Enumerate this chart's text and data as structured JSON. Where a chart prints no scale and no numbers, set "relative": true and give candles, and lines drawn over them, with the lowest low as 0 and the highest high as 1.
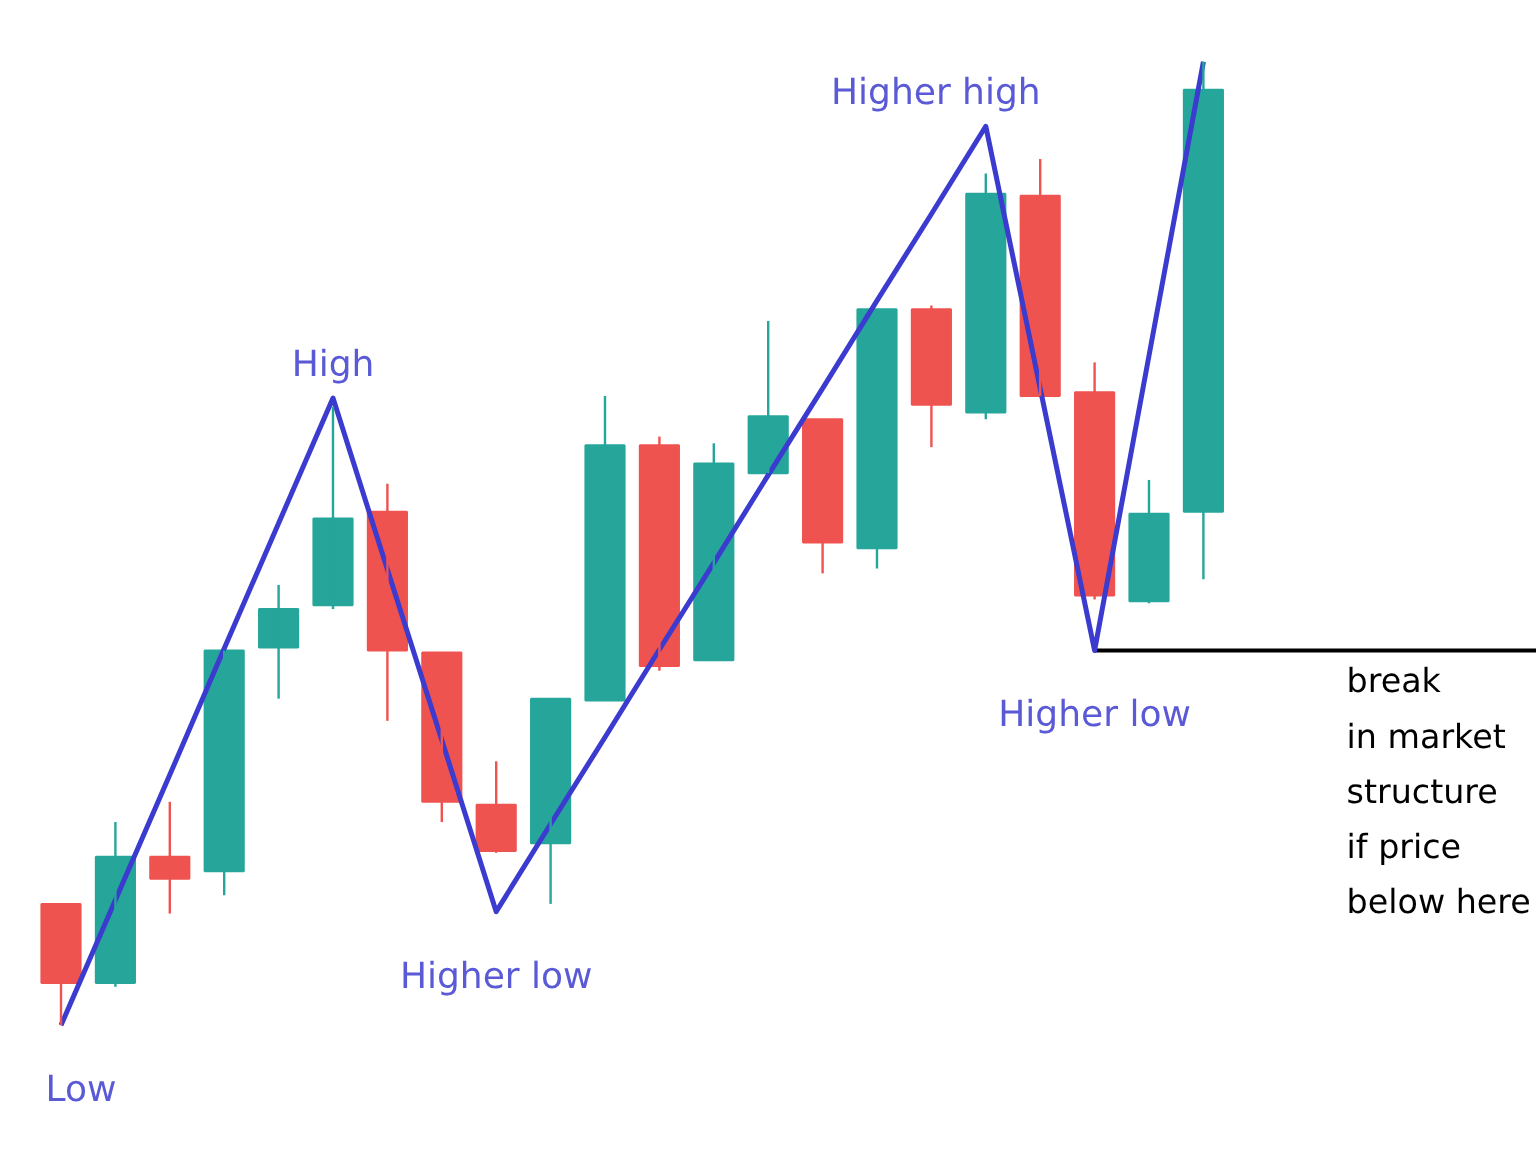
{
  "chart_data": {
    "type": "candlestick",
    "relative": true,
    "tick_labels": false,
    "grid": false,
    "categories": [
      null,
      null,
      null,
      null,
      null,
      null,
      null,
      null,
      null,
      null,
      null,
      null,
      null,
      null,
      null,
      null,
      null,
      null,
      null,
      null,
      null,
      null
    ],
    "ohlc": [
      [
        0.126,
        0.126,
        0,
        0.044
      ],
      [
        0.044,
        0.211,
        0.04,
        0.175
      ],
      [
        0.175,
        0.232,
        0.116,
        0.152
      ],
      [
        0.16,
        0.389,
        0.135,
        0.389
      ],
      [
        0.392,
        0.457,
        0.339,
        0.432
      ],
      [
        0.436,
        0.642,
        0.432,
        0.526
      ],
      [
        0.533,
        0.562,
        0.316,
        0.389
      ],
      [
        0.387,
        0.387,
        0.211,
        0.232
      ],
      [
        0.229,
        0.274,
        0.179,
        0.181
      ],
      [
        0.189,
        0.339,
        0.126,
        0.339
      ],
      [
        0.337,
        0.653,
        0.337,
        0.602
      ],
      [
        0.602,
        0.611,
        0.368,
        0.373
      ],
      [
        0.379,
        0.604,
        0.379,
        0.583
      ],
      [
        0.573,
        0.731,
        0.573,
        0.632
      ],
      [
        0.629,
        0.629,
        0.469,
        0.501
      ],
      [
        0.495,
        0.743,
        0.474,
        0.743
      ],
      [
        0.743,
        0.747,
        0.6,
        0.644
      ],
      [
        0.636,
        0.884,
        0.629,
        0.863
      ],
      [
        0.861,
        0.899,
        0.653,
        0.653
      ],
      [
        0.657,
        0.688,
        0.442,
        0.446
      ],
      [
        0.44,
        0.566,
        0.438,
        0.531
      ],
      [
        0.533,
        1.0,
        0.463,
        0.971
      ]
    ],
    "colors": [
      "#ef5350",
      "#26a69a",
      "#ef5350",
      "#26a69a",
      "#26a69a",
      "#26a69a",
      "#ef5350",
      "#ef5350",
      "#ef5350",
      "#26a69a",
      "#26a69a",
      "#ef5350",
      "#26a69a",
      "#26a69a",
      "#ef5350",
      "#26a69a",
      "#ef5350",
      "#26a69a",
      "#ef5350",
      "#ef5350",
      "#26a69a",
      "#26a69a"
    ],
    "series": [
      {
        "type": "line",
        "color": "#3b3bcf",
        "values": [
          0,
          0.13,
          0.26,
          0.391,
          0.521,
          0.651,
          0.473,
          0.296,
          0.118,
          0.209,
          0.299,
          0.39,
          0.48,
          0.571,
          0.661,
          0.752,
          0.842,
          0.933,
          0.661,
          0.389,
          0.695,
          1.0
        ]
      }
    ],
    "annotations": [
      "Low",
      "High",
      "Higher low",
      "Higher high",
      "Higher low"
    ],
    "ref_lines": [
      {
        "axis": "y",
        "value": 0.389,
        "color": "#000000",
        "label": "break\nin market\nstructure\nif price\nbelow here"
      }
    ]
  }
}
